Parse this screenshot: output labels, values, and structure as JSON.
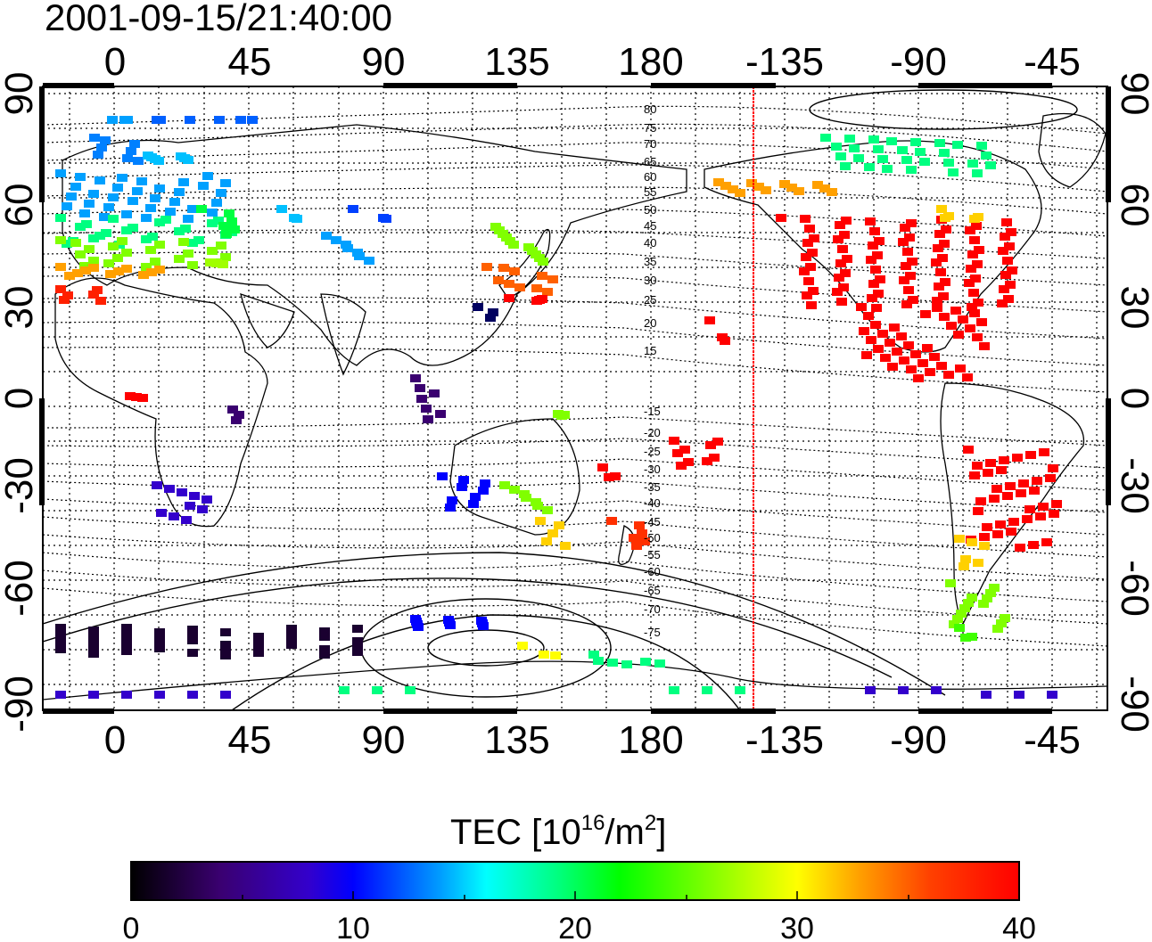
{
  "title": "2001-09-15/21:40:00",
  "top_lon_labels": [
    "0",
    "45",
    "90",
    "135",
    "180",
    "-135",
    "-90",
    "-45"
  ],
  "bottom_lon_labels": [
    "0",
    "45",
    "90",
    "135",
    "180",
    "-135",
    "-90",
    "-45"
  ],
  "left_lat_labels": [
    "90",
    "60",
    "30",
    "0",
    "-30",
    "-60",
    "-90"
  ],
  "right_lat_labels": [
    "90",
    "60",
    "30",
    "0",
    "-30",
    "-60",
    "-90"
  ],
  "contour_labels_north": [
    "80",
    "75",
    "70",
    "65",
    "60",
    "55",
    "50",
    "45",
    "40",
    "35",
    "30",
    "25",
    "20",
    "15"
  ],
  "contour_labels_south": [
    "-15",
    "-20",
    "-25",
    "-30",
    "-35",
    "-40",
    "-45",
    "-50",
    "-55",
    "-60",
    "-65",
    "-70",
    "-75"
  ],
  "colorbar": {
    "label_main": "TEC  [10",
    "label_sup1": "16",
    "label_mid": "/m",
    "label_sup2": "2",
    "label_end": "]",
    "ticks": [
      "0",
      "10",
      "20",
      "30",
      "40"
    ],
    "colors": [
      "#000000",
      "#3a0070",
      "#3300cc",
      "#0000ff",
      "#00a0ff",
      "#00ffff",
      "#00ff80",
      "#00ff00",
      "#80ff00",
      "#ffff00",
      "#ffa000",
      "#ff4000",
      "#ff0000"
    ]
  },
  "colors": {
    "terminator_line": "#ff0000",
    "coast": "#000000",
    "grid": "#000000"
  }
}
